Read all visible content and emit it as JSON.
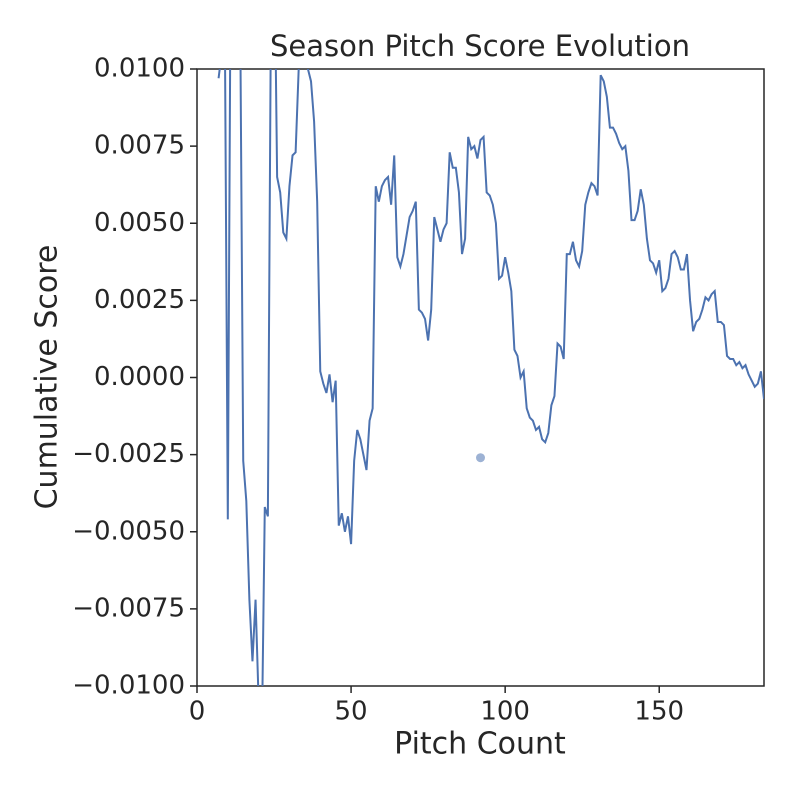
{
  "chart_data": {
    "type": "line",
    "title": "Season Pitch Score Evolution",
    "xlabel": "Pitch Count",
    "ylabel": "Cumulative Score",
    "x": [
      7,
      8,
      9,
      10,
      11,
      12,
      13,
      14,
      15,
      16,
      17,
      18,
      19,
      20,
      21,
      22,
      23,
      24,
      25,
      26,
      27,
      28,
      29,
      30,
      31,
      32,
      33,
      34,
      35,
      36,
      37,
      38,
      39,
      40,
      41,
      42,
      43,
      44,
      45,
      46,
      47,
      48,
      49,
      50,
      51,
      52,
      53,
      54,
      55,
      56,
      57,
      58,
      59,
      60,
      61,
      62,
      63,
      64,
      65,
      66,
      67,
      68,
      69,
      70,
      71,
      72,
      73,
      74,
      75,
      76,
      77,
      78,
      79,
      80,
      81,
      82,
      83,
      84,
      85,
      86,
      87,
      88,
      89,
      90,
      91,
      92,
      93,
      94,
      95,
      96,
      97,
      98,
      99,
      100,
      101,
      102,
      103,
      104,
      105,
      106,
      107,
      108,
      109,
      110,
      111,
      112,
      113,
      114,
      115,
      116,
      117,
      118,
      119,
      120,
      121,
      122,
      123,
      124,
      125,
      126,
      127,
      128,
      129,
      130,
      131,
      132,
      133,
      134,
      135,
      136,
      137,
      138,
      139,
      140,
      141,
      142,
      143,
      144,
      145,
      146,
      147,
      148,
      149,
      150,
      151,
      152,
      153,
      154,
      155,
      156,
      157,
      158,
      159,
      160,
      161,
      162,
      163,
      164,
      165,
      166,
      167,
      168,
      169,
      170,
      171,
      172,
      173,
      174,
      175,
      176,
      177,
      178,
      179,
      180,
      181,
      182,
      183,
      184
    ],
    "series": [
      {
        "color": "#4c72b0",
        "values": [
          0.0097,
          0.0105,
          0.012,
          -0.0046,
          0.015,
          0.013,
          0.011,
          0.012,
          -0.0027,
          -0.004,
          -0.0072,
          -0.0092,
          -0.0072,
          -0.0105,
          -0.012,
          -0.0042,
          -0.0045,
          0.012,
          0.015,
          0.0065,
          0.006,
          0.0047,
          0.0045,
          0.0062,
          0.0072,
          0.0073,
          0.01,
          0.011,
          0.012,
          0.01,
          0.0096,
          0.0083,
          0.0057,
          0.0002,
          -0.0002,
          -0.0005,
          0.0001,
          -0.0008,
          -0.0001,
          -0.0048,
          -0.0044,
          -0.005,
          -0.0045,
          -0.0054,
          -0.0027,
          -0.0017,
          -0.002,
          -0.0025,
          -0.003,
          -0.0014,
          -0.001,
          0.0062,
          0.0057,
          0.0062,
          0.0064,
          0.0065,
          0.0056,
          0.0072,
          0.0039,
          0.0036,
          0.004,
          0.0046,
          0.0052,
          0.0054,
          0.0057,
          0.0022,
          0.0021,
          0.0019,
          0.0012,
          0.0022,
          0.0052,
          0.0048,
          0.0044,
          0.0048,
          0.005,
          0.0073,
          0.0068,
          0.0068,
          0.006,
          0.004,
          0.0045,
          0.0078,
          0.0074,
          0.0075,
          0.0071,
          0.0077,
          0.0078,
          0.006,
          0.0059,
          0.0056,
          0.005,
          0.0032,
          0.0033,
          0.0039,
          0.0034,
          0.0028,
          0.0009,
          0.0007,
          0,
          0.0002,
          -0.001,
          -0.0013,
          -0.0014,
          -0.0017,
          -0.0016,
          -0.002,
          -0.0021,
          -0.0018,
          -0.0009,
          -0.0006,
          0.0011,
          0.001,
          0.0006,
          0.004,
          0.004,
          0.0044,
          0.0038,
          0.0036,
          0.0041,
          0.0056,
          0.006,
          0.0063,
          0.0062,
          0.0059,
          0.0098,
          0.0096,
          0.0091,
          0.0081,
          0.0081,
          0.0079,
          0.0076,
          0.0074,
          0.0075,
          0.0067,
          0.0051,
          0.0051,
          0.0054,
          0.0061,
          0.0056,
          0.0045,
          0.0038,
          0.0037,
          0.0034,
          0.0038,
          0.0028,
          0.0029,
          0.0032,
          0.004,
          0.0041,
          0.0039,
          0.0035,
          0.0035,
          0.004,
          0.0025,
          0.0015,
          0.0018,
          0.0019,
          0.0022,
          0.0026,
          0.0025,
          0.0027,
          0.0028,
          0.0018,
          0.0018,
          0.0017,
          0.0007,
          0.0006,
          0.0006,
          0.0004,
          0.0005,
          0.0003,
          0.0004,
          0.0001,
          -0.0001,
          -0.0003,
          -0.0002,
          0.0002,
          -0.0007
        ]
      }
    ],
    "points": {
      "color": "#4c72b0",
      "x": [
        92
      ],
      "values": [
        -0.0026
      ]
    },
    "xlim": [
      0,
      184
    ],
    "ylim": [
      -0.01,
      0.01
    ],
    "xticks": [
      0,
      50,
      100,
      150
    ],
    "yticks": [
      {
        "value": -0.01,
        "label": "−0.0100"
      },
      {
        "value": -0.0075,
        "label": "−0.0075"
      },
      {
        "value": -0.005,
        "label": "−0.0050"
      },
      {
        "value": -0.0025,
        "label": "−0.0025"
      },
      {
        "value": 0,
        "label": "0.0000"
      },
      {
        "value": 0.0025,
        "label": "0.0025"
      },
      {
        "value": 0.005,
        "label": "0.0050"
      },
      {
        "value": 0.0075,
        "label": "0.0075"
      },
      {
        "value": 0.01,
        "label": "0.0100"
      }
    ]
  }
}
